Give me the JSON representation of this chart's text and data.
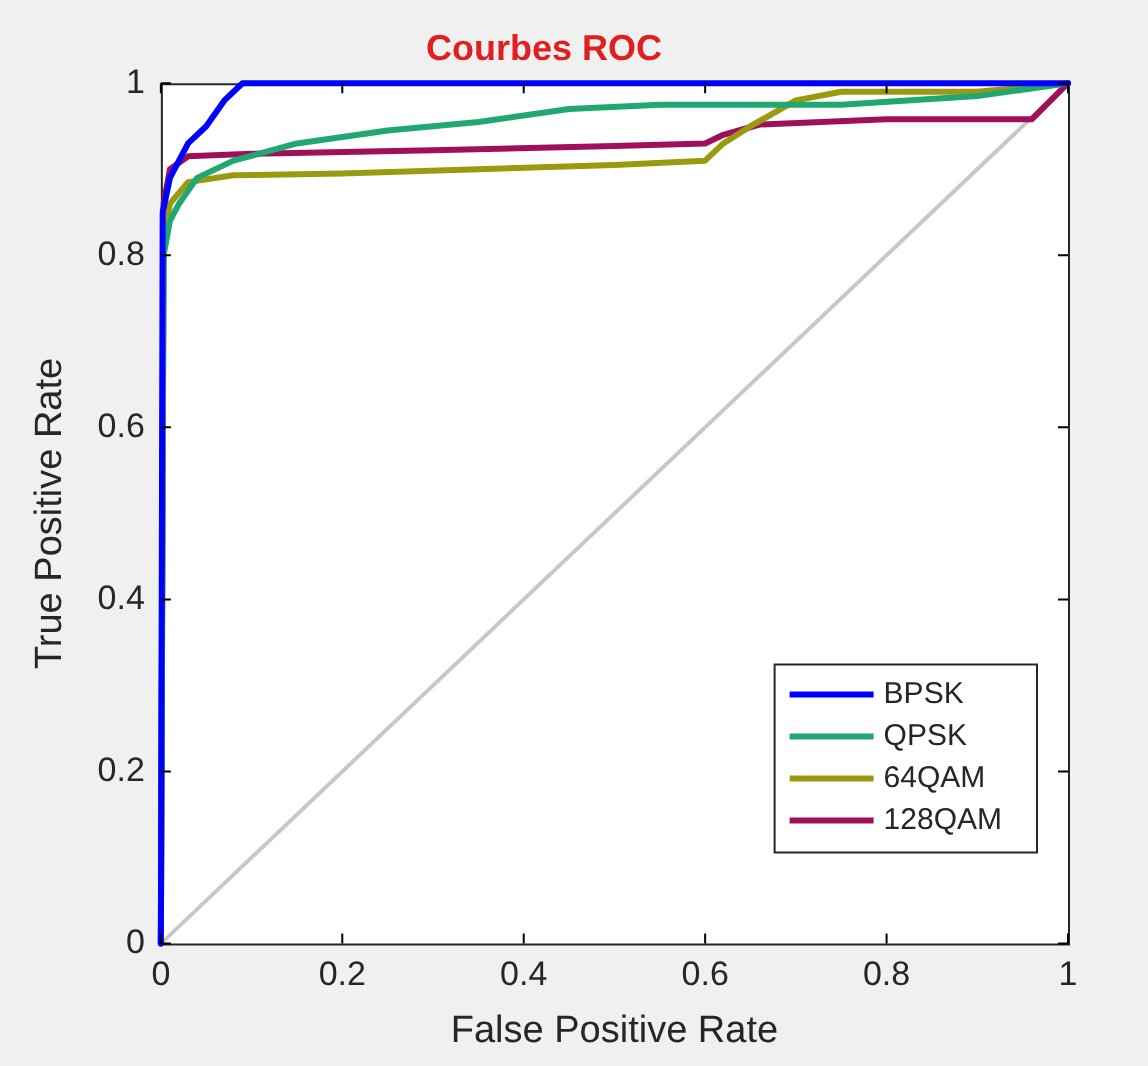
{
  "chart_data": {
    "type": "line",
    "title": "Courbes ROC",
    "xlabel": "False Positive Rate",
    "ylabel": "True Positive Rate",
    "xlim": [
      0,
      1
    ],
    "ylim": [
      0,
      1
    ],
    "xticks": [
      0,
      0.2,
      0.4,
      0.6,
      0.8,
      1
    ],
    "yticks": [
      0,
      0.2,
      0.4,
      0.6,
      0.8,
      1
    ],
    "grid": false,
    "legend": "bottom right",
    "marker": "none",
    "line_style": "solid",
    "series": [
      {
        "name": "BPSK",
        "color": "#0000ff",
        "x": [
          0,
          0.002,
          0.01,
          0.02,
          0.03,
          0.05,
          0.07,
          0.09,
          1
        ],
        "values": [
          0,
          0.85,
          0.89,
          0.91,
          0.93,
          0.95,
          0.98,
          1,
          1
        ]
      },
      {
        "name": "QPSK",
        "color": "#20a870",
        "x": [
          0,
          0.003,
          0.01,
          0.02,
          0.04,
          0.08,
          0.15,
          0.25,
          0.35,
          0.45,
          0.55,
          0.75,
          0.9,
          1
        ],
        "values": [
          0,
          0.8,
          0.84,
          0.86,
          0.89,
          0.91,
          0.93,
          0.945,
          0.955,
          0.97,
          0.975,
          0.975,
          0.985,
          1
        ]
      },
      {
        "name": "64QAM",
        "color": "#9a9a10",
        "x": [
          0,
          0.003,
          0.01,
          0.03,
          0.08,
          0.2,
          0.35,
          0.5,
          0.6,
          0.62,
          0.65,
          0.7,
          0.75,
          0.9,
          1
        ],
        "values": [
          0,
          0.82,
          0.86,
          0.885,
          0.893,
          0.895,
          0.9,
          0.905,
          0.91,
          0.93,
          0.95,
          0.98,
          0.99,
          0.99,
          1
        ]
      },
      {
        "name": "128QAM",
        "color": "#a0105a",
        "x": [
          0,
          0.003,
          0.01,
          0.03,
          0.1,
          0.3,
          0.5,
          0.6,
          0.62,
          0.66,
          0.8,
          0.96,
          1
        ],
        "values": [
          0,
          0.86,
          0.9,
          0.915,
          0.918,
          0.922,
          0.927,
          0.93,
          0.94,
          0.952,
          0.958,
          0.958,
          1
        ]
      },
      {
        "color": "#c8c8c8",
        "x": [
          0,
          1
        ],
        "values": [
          0,
          1
        ]
      }
    ]
  }
}
